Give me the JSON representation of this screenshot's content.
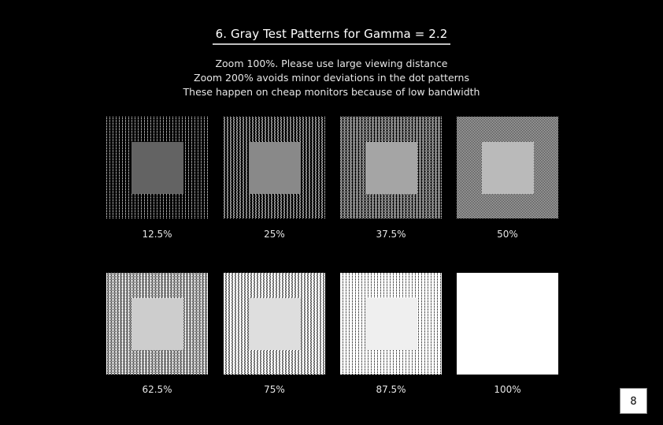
{
  "page": {
    "title": "6. Gray Test Patterns for Gamma = 2.2",
    "subtitle_lines": [
      "Zoom 100%. Please use large viewing distance",
      "Zoom 200% avoids minor deviations in the dot patterns",
      "These happen on cheap monitors because of low bandwidth"
    ],
    "page_number": "8"
  },
  "patterns": [
    {
      "label": "12.5%",
      "level": 0.125,
      "inner_color": "#636363"
    },
    {
      "label": "25%",
      "level": 0.25,
      "inner_color": "#898989"
    },
    {
      "label": "37.5%",
      "level": 0.375,
      "inner_color": "#a5a5a5"
    },
    {
      "label": "50%",
      "level": 0.5,
      "inner_color": "#bababa"
    },
    {
      "label": "62.5%",
      "level": 0.625,
      "inner_color": "#cdcdcd"
    },
    {
      "label": "75%",
      "level": 0.75,
      "inner_color": "#dedede"
    },
    {
      "label": "87.5%",
      "level": 0.875,
      "inner_color": "#efefef"
    },
    {
      "label": "100%",
      "level": 1.0,
      "inner_color": "#ffffff"
    }
  ]
}
